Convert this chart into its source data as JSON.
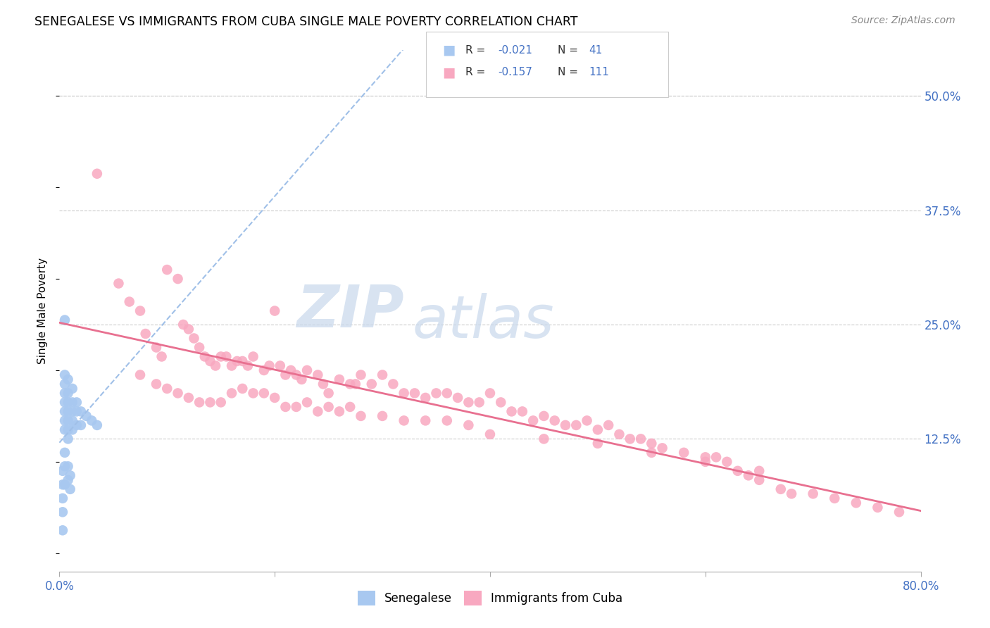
{
  "title": "SENEGALESE VS IMMIGRANTS FROM CUBA SINGLE MALE POVERTY CORRELATION CHART",
  "source": "Source: ZipAtlas.com",
  "ylabel": "Single Male Poverty",
  "xlim": [
    0.0,
    0.8
  ],
  "ylim": [
    -0.02,
    0.55
  ],
  "x_ticks": [
    0.0,
    0.2,
    0.4,
    0.6,
    0.8
  ],
  "x_tick_labels": [
    "0.0%",
    "",
    "",
    "",
    "80.0%"
  ],
  "y_tick_labels_right": [
    "50.0%",
    "37.5%",
    "25.0%",
    "12.5%"
  ],
  "y_ticks_right": [
    0.5,
    0.375,
    0.25,
    0.125
  ],
  "color_blue": "#a8c8f0",
  "color_pink": "#f8a8c0",
  "line_color_blue": "#a0c0e8",
  "line_color_pink": "#e87090",
  "blue_scatter_x": [
    0.005,
    0.005,
    0.005,
    0.005,
    0.005,
    0.005,
    0.005,
    0.005,
    0.008,
    0.008,
    0.008,
    0.008,
    0.008,
    0.008,
    0.008,
    0.012,
    0.012,
    0.012,
    0.012,
    0.012,
    0.016,
    0.016,
    0.016,
    0.02,
    0.02,
    0.025,
    0.03,
    0.035,
    0.005,
    0.005,
    0.005,
    0.008,
    0.008,
    0.01,
    0.01,
    0.003,
    0.003,
    0.003,
    0.003,
    0.003
  ],
  "blue_scatter_y": [
    0.255,
    0.195,
    0.185,
    0.175,
    0.165,
    0.155,
    0.145,
    0.135,
    0.19,
    0.175,
    0.165,
    0.155,
    0.145,
    0.135,
    0.125,
    0.18,
    0.165,
    0.155,
    0.145,
    0.135,
    0.165,
    0.155,
    0.14,
    0.155,
    0.14,
    0.15,
    0.145,
    0.14,
    0.11,
    0.095,
    0.075,
    0.095,
    0.08,
    0.085,
    0.07,
    0.09,
    0.075,
    0.06,
    0.045,
    0.025
  ],
  "pink_scatter_x": [
    0.035,
    0.055,
    0.065,
    0.075,
    0.08,
    0.09,
    0.095,
    0.1,
    0.11,
    0.115,
    0.12,
    0.125,
    0.13,
    0.135,
    0.14,
    0.145,
    0.15,
    0.155,
    0.16,
    0.165,
    0.17,
    0.175,
    0.18,
    0.19,
    0.195,
    0.2,
    0.205,
    0.21,
    0.215,
    0.22,
    0.225,
    0.23,
    0.24,
    0.245,
    0.25,
    0.26,
    0.27,
    0.275,
    0.28,
    0.29,
    0.3,
    0.31,
    0.32,
    0.33,
    0.34,
    0.35,
    0.36,
    0.37,
    0.38,
    0.39,
    0.4,
    0.41,
    0.42,
    0.43,
    0.44,
    0.45,
    0.46,
    0.47,
    0.48,
    0.49,
    0.5,
    0.51,
    0.52,
    0.53,
    0.54,
    0.55,
    0.56,
    0.58,
    0.6,
    0.61,
    0.62,
    0.63,
    0.64,
    0.65,
    0.67,
    0.68,
    0.7,
    0.72,
    0.74,
    0.76,
    0.78,
    0.075,
    0.09,
    0.1,
    0.11,
    0.12,
    0.13,
    0.14,
    0.15,
    0.16,
    0.17,
    0.18,
    0.19,
    0.2,
    0.21,
    0.22,
    0.23,
    0.24,
    0.25,
    0.26,
    0.27,
    0.28,
    0.3,
    0.32,
    0.34,
    0.36,
    0.38,
    0.4,
    0.45,
    0.5,
    0.55,
    0.6,
    0.65
  ],
  "pink_scatter_y": [
    0.415,
    0.295,
    0.275,
    0.265,
    0.24,
    0.225,
    0.215,
    0.31,
    0.3,
    0.25,
    0.245,
    0.235,
    0.225,
    0.215,
    0.21,
    0.205,
    0.215,
    0.215,
    0.205,
    0.21,
    0.21,
    0.205,
    0.215,
    0.2,
    0.205,
    0.265,
    0.205,
    0.195,
    0.2,
    0.195,
    0.19,
    0.2,
    0.195,
    0.185,
    0.175,
    0.19,
    0.185,
    0.185,
    0.195,
    0.185,
    0.195,
    0.185,
    0.175,
    0.175,
    0.17,
    0.175,
    0.175,
    0.17,
    0.165,
    0.165,
    0.175,
    0.165,
    0.155,
    0.155,
    0.145,
    0.15,
    0.145,
    0.14,
    0.14,
    0.145,
    0.135,
    0.14,
    0.13,
    0.125,
    0.125,
    0.12,
    0.115,
    0.11,
    0.105,
    0.105,
    0.1,
    0.09,
    0.085,
    0.08,
    0.07,
    0.065,
    0.065,
    0.06,
    0.055,
    0.05,
    0.045,
    0.195,
    0.185,
    0.18,
    0.175,
    0.17,
    0.165,
    0.165,
    0.165,
    0.175,
    0.18,
    0.175,
    0.175,
    0.17,
    0.16,
    0.16,
    0.165,
    0.155,
    0.16,
    0.155,
    0.16,
    0.15,
    0.15,
    0.145,
    0.145,
    0.145,
    0.14,
    0.13,
    0.125,
    0.12,
    0.11,
    0.1,
    0.09
  ]
}
